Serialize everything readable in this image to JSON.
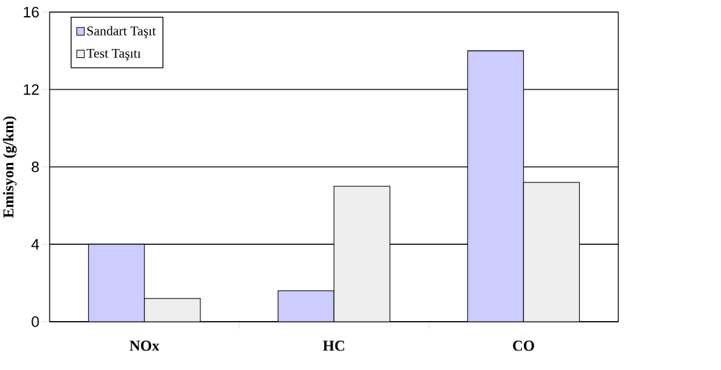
{
  "chart_data": {
    "type": "bar",
    "ylabel": "Emisyon (g/km)",
    "categories": [
      "NOx",
      "HC",
      "CO"
    ],
    "series": [
      {
        "name": "Sandart Taşıt",
        "color": "#ccccff",
        "values": [
          4,
          1.6,
          14
        ]
      },
      {
        "name": "Test Taşıtı",
        "color": "#eeeeee",
        "values": [
          1.2,
          7,
          7.2
        ]
      }
    ],
    "ylim": [
      0,
      16
    ],
    "yticks": [
      0,
      4,
      8,
      12,
      16
    ],
    "grid": "y",
    "legend": "top left"
  }
}
